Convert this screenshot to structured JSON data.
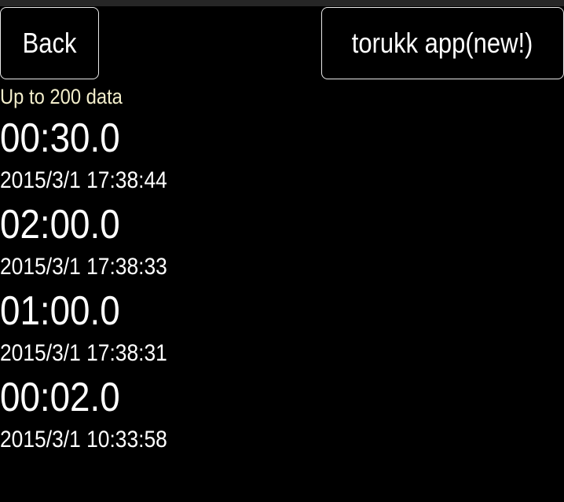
{
  "header": {
    "back_label": "Back",
    "app_label": "torukk app(new!)"
  },
  "limit_text": "Up to 200 data",
  "colors": {
    "background": "#000000",
    "limit_text": "#f3eecb",
    "text": "#ffffff"
  },
  "records": [
    {
      "duration": "00:30.0",
      "datetime": "2015/3/1 17:38:44"
    },
    {
      "duration": "02:00.0",
      "datetime": "2015/3/1 17:38:33"
    },
    {
      "duration": "01:00.0",
      "datetime": "2015/3/1 17:38:31"
    },
    {
      "duration": "00:02.0",
      "datetime": "2015/3/1 10:33:58"
    }
  ]
}
